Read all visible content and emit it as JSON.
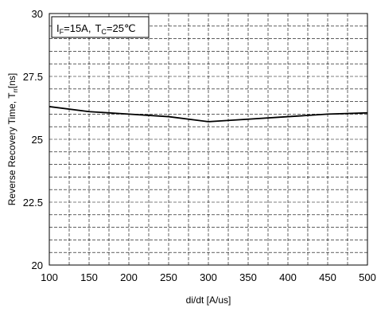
{
  "chart_data": {
    "type": "line",
    "title": "",
    "xlabel": "di/dt [A/us]",
    "ylabel": {
      "main": "Reverse Recovery Time, T",
      "subscript": "rr",
      "unit": "[ns]"
    },
    "annotation": {
      "i_main": "I",
      "i_sub": "F",
      "i_value": "=15A,",
      "t_main": "T",
      "t_sub": "C",
      "t_value": "=25℃"
    },
    "xlim": [
      100,
      500
    ],
    "ylim": [
      20,
      30
    ],
    "x_ticks": [
      100,
      150,
      200,
      250,
      300,
      350,
      400,
      450,
      500
    ],
    "y_ticks": [
      20,
      22.5,
      25,
      27.5,
      30
    ],
    "y_tick_labels": [
      "20",
      "22.5",
      "25",
      "27.5",
      "30"
    ],
    "grid": true,
    "series": [
      {
        "x": [
          100,
          150,
          200,
          250,
          300,
          350,
          400,
          450,
          500
        ],
        "y": [
          26.3,
          26.1,
          26.0,
          25.9,
          25.7,
          25.8,
          25.9,
          26.0,
          26.05
        ],
        "color": "#000000"
      }
    ]
  }
}
